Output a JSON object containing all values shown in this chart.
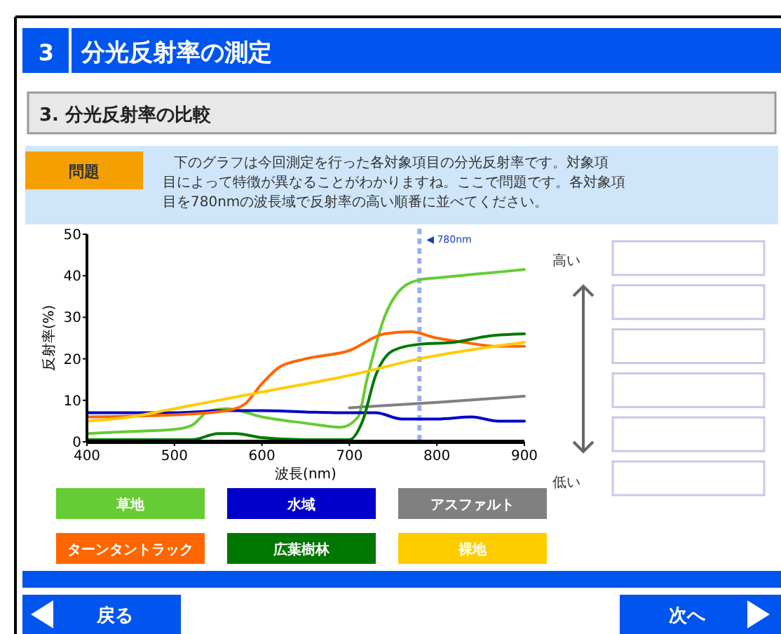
{
  "chart_data": {
    "type": "line",
    "title": "分光反射率の測定",
    "subtitle": "3. 分光反射率の比較",
    "xlabel": "波長(nm)",
    "ylabel": "反射率(%)",
    "annotations": [
      "3",
      "問題",
      "下のグラフは今回測定を行った各対象項目の分光反射率です。対象項目によって特徴が異なることがわかりますね。ここで問題です。各対象項目を780nmの波長域で反射率の高い順番に並べてください。",
      "高い",
      "低い",
      "戻る",
      "次へ"
    ],
    "xlim": [
      400,
      900
    ],
    "xticks": [
      400,
      500,
      600,
      700,
      800,
      900
    ],
    "ylim": [
      0,
      50
    ],
    "yticks": [
      0,
      10,
      20,
      30,
      40,
      50
    ],
    "legend": "bottom",
    "ref_lines": [
      {
        "axis": "x",
        "value": 780,
        "label": "◀ 780nm",
        "color": "#7f9cf5",
        "line_style": "dashed"
      }
    ],
    "series": [
      {
        "name": "草地",
        "color": "#66cc33",
        "x": [
          400,
          450,
          500,
          520,
          540,
          560,
          600,
          650,
          690,
          710,
          720,
          740,
          760,
          780,
          800,
          850,
          900
        ],
        "values": [
          2,
          2.5,
          3,
          4,
          7.5,
          8,
          6,
          4.5,
          3.5,
          6,
          15,
          30,
          37,
          39,
          39.5,
          40.5,
          41.5
        ]
      },
      {
        "name": "水域",
        "color": "#0000cc",
        "x": [
          400,
          500,
          560,
          600,
          650,
          700,
          730,
          760,
          800,
          840,
          870,
          900
        ],
        "values": [
          7,
          7,
          7.5,
          7.5,
          7.2,
          7,
          7,
          5.5,
          5.5,
          6,
          5,
          5
        ]
      },
      {
        "name": "アスファルト",
        "color": "#808080",
        "x": [
          700,
          800,
          900
        ],
        "values": [
          8.2,
          9.5,
          11
        ]
      },
      {
        "name": "ターンタントラック",
        "color": "#ff6600",
        "x": [
          400,
          500,
          560,
          580,
          600,
          620,
          650,
          700,
          740,
          770,
          800,
          830,
          870,
          900
        ],
        "values": [
          6,
          6.5,
          7.5,
          9,
          14,
          18,
          20,
          22,
          26,
          26.5,
          25,
          24,
          23,
          23
        ]
      },
      {
        "name": "広葉樹林",
        "color": "#007700",
        "x": [
          400,
          520,
          550,
          570,
          600,
          650,
          700,
          715,
          730,
          750,
          780,
          820,
          860,
          900
        ],
        "values": [
          0.5,
          0.5,
          2,
          2,
          1,
          0.5,
          0.5,
          5,
          16,
          22,
          23.5,
          24,
          25.5,
          26
        ]
      },
      {
        "name": "裸地",
        "color": "#ffcc00",
        "x": [
          400,
          450,
          500,
          600,
          700,
          780,
          900
        ],
        "values": [
          5,
          6,
          8,
          12,
          16,
          20,
          24
        ]
      }
    ]
  }
}
